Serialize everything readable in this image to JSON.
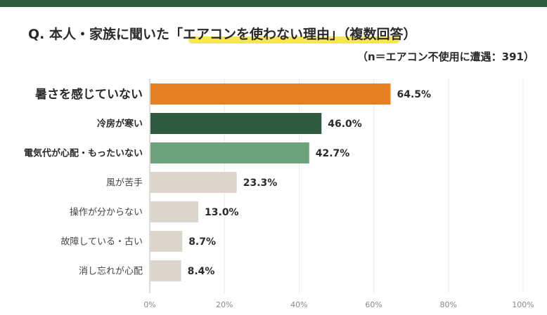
{
  "title": "Q. 本人・家族に聞いた「エアコンを使わない理由」（複数回答）",
  "subtitle": "（n＝エアコン不使用に遭遇：391）",
  "colors": {
    "topbar": "#2e5a3c",
    "highlight": "#f3e03a",
    "bars": [
      "#e57f24",
      "#2d5a3f",
      "#6ea27c",
      "#dad6cb",
      "#dad6cb",
      "#dad6cb",
      "#dad6cb"
    ]
  },
  "chart_data": {
    "type": "bar",
    "orientation": "horizontal",
    "categories": [
      "暑さを感じていない",
      "冷房が寒い",
      "電気代が心配・もったいない",
      "風が苦手",
      "操作が分からない",
      "故障している・古い",
      "消し忘れが心配"
    ],
    "values": [
      64.5,
      46.0,
      42.7,
      23.3,
      13.0,
      8.7,
      8.4
    ],
    "data_labels": [
      "64.5%",
      "46.0%",
      "42.7%",
      "23.3%",
      "13.0%",
      "8.7%",
      "8.4%"
    ],
    "xlim": [
      0,
      100
    ],
    "xticks": [
      0,
      20,
      40,
      60,
      80,
      100
    ],
    "xtick_labels": [
      "0%",
      "20%",
      "40%",
      "60%",
      "80%",
      "100%"
    ],
    "grid": true
  }
}
